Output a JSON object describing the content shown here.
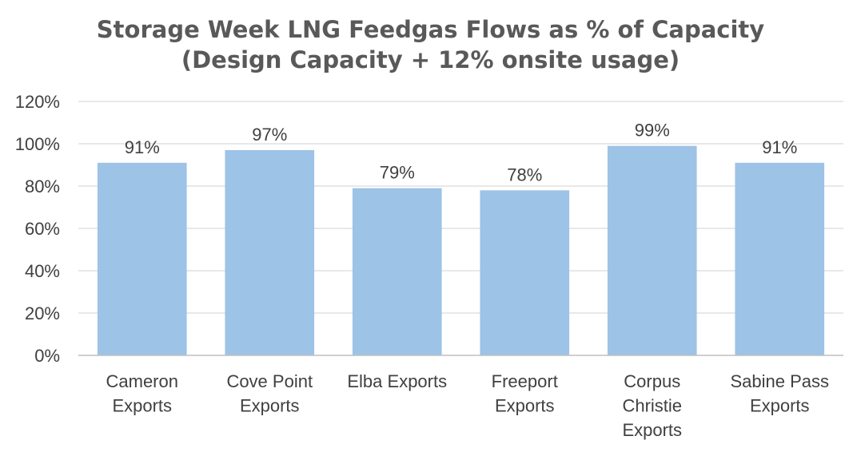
{
  "chart_data": {
    "type": "bar",
    "title_lines": [
      "Storage Week LNG Feedgas Flows as % of Capacity",
      "(Design Capacity + 12% onsite usage)"
    ],
    "categories": [
      [
        "Cameron",
        "Exports"
      ],
      [
        "Cove Point",
        "Exports"
      ],
      [
        "Elba Exports"
      ],
      [
        "Freeport",
        "Exports"
      ],
      [
        "Corpus",
        "Christie",
        "Exports"
      ],
      [
        "Sabine Pass",
        "Exports"
      ]
    ],
    "values": [
      91,
      97,
      79,
      78,
      99,
      91
    ],
    "data_labels": [
      "91%",
      "97%",
      "79%",
      "78%",
      "99%",
      "91%"
    ],
    "ylim": [
      0,
      120
    ],
    "y_ticks": [
      0,
      20,
      40,
      60,
      80,
      100,
      120
    ],
    "y_tick_labels": [
      "0%",
      "20%",
      "40%",
      "60%",
      "80%",
      "100%",
      "120%"
    ],
    "grid": true,
    "legend": "none",
    "colors": {
      "bar": "#9dc3e6",
      "grid": "#d9d9d9",
      "axis": "#bfbfbf",
      "text": "#404040",
      "title": "#595959"
    }
  }
}
